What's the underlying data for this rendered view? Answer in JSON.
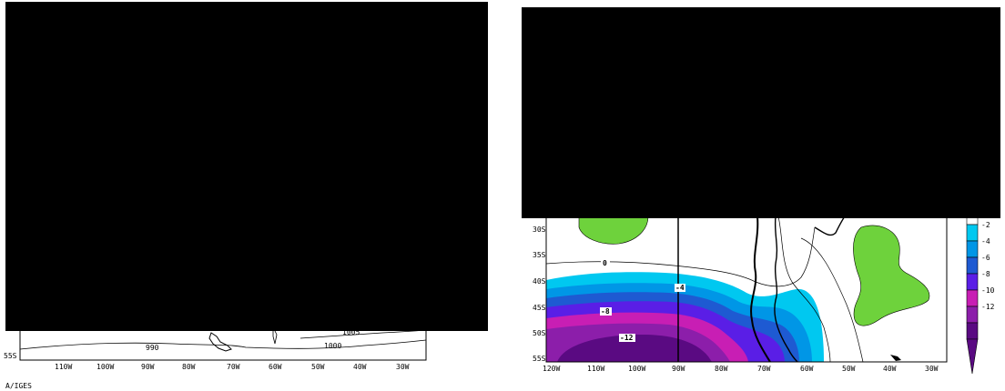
{
  "left_panel": {
    "lat_labels": [
      "55S"
    ],
    "lon_labels": [
      "110W",
      "100W",
      "90W",
      "80W",
      "70W",
      "60W",
      "50W",
      "40W",
      "30W"
    ],
    "contour_labels": [
      "990",
      "1000",
      "1005"
    ],
    "credit": "A/IGES"
  },
  "right_panel": {
    "lat_labels": [
      "30S",
      "35S",
      "40S",
      "45S",
      "50S",
      "55S"
    ],
    "lon_labels": [
      "120W",
      "110W",
      "100W",
      "90W",
      "80W",
      "70W",
      "60W",
      "50W",
      "40W",
      "30W"
    ],
    "contour_labels": [
      "0",
      "-4",
      "-8",
      "-12"
    ],
    "colorbar": {
      "labels": [
        "-2",
        "-4",
        "-6",
        "-8",
        "-10",
        "-12"
      ],
      "colors": [
        "#ffffff",
        "#00c8f0",
        "#0096e6",
        "#1e5ad2",
        "#5a1ee6",
        "#c81eb4",
        "#8c1eaa",
        "#5a0a82"
      ]
    },
    "colors": {
      "positive_fill": "#6ed23c",
      "band_1": "#00c8f0",
      "band_2": "#0096e6",
      "band_3": "#1e5ad2",
      "band_4": "#5a1ee6",
      "band_5": "#c81eb4",
      "band_6": "#8c1eaa",
      "band_7": "#5a0a82"
    }
  }
}
